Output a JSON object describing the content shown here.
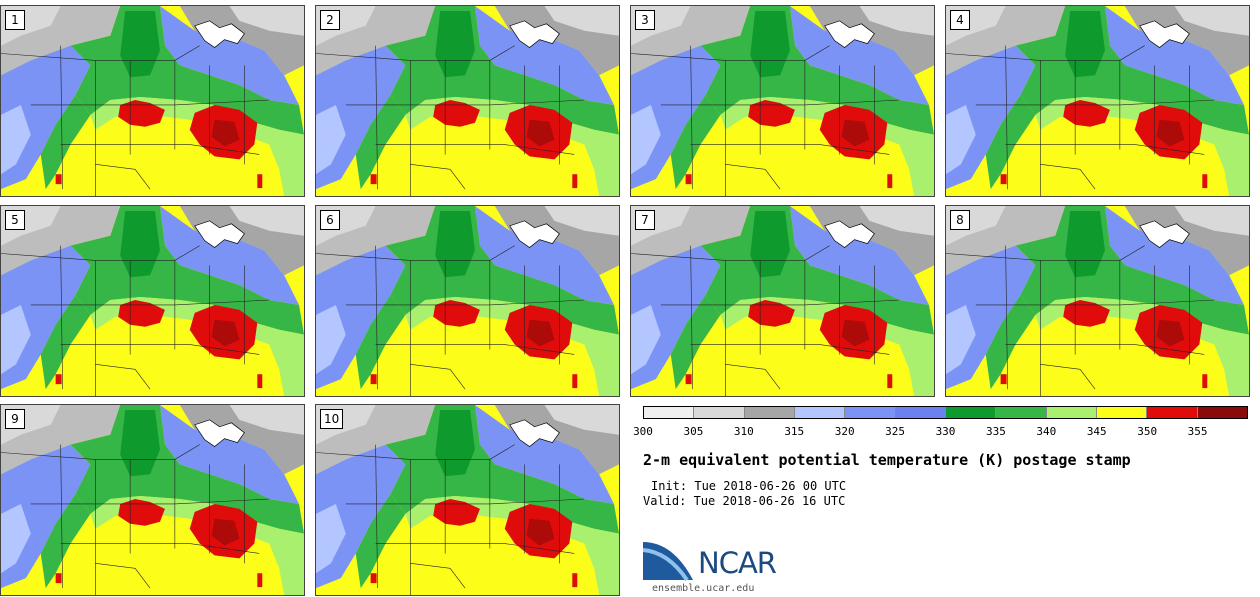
{
  "stamps": [
    {
      "label": "1",
      "variant": 0
    },
    {
      "label": "2",
      "variant": 1
    },
    {
      "label": "3",
      "variant": 2
    },
    {
      "label": "4",
      "variant": 3
    },
    {
      "label": "5",
      "variant": 4
    },
    {
      "label": "6",
      "variant": 5
    },
    {
      "label": "7",
      "variant": 6
    },
    {
      "label": "8",
      "variant": 7
    },
    {
      "label": "9",
      "variant": 8
    },
    {
      "label": "10",
      "variant": 9
    }
  ],
  "colorbar": {
    "colors": [
      "#efefef",
      "#d9d9d9",
      "#a6a6a6",
      "#b4c6ff",
      "#7b93f5",
      "#6a82f0",
      "#0f9a2e",
      "#36b646",
      "#a8f06e",
      "#fdfd1a",
      "#e00b0b",
      "#8b0a0a"
    ],
    "ticks": [
      "300",
      "305",
      "310",
      "315",
      "320",
      "325",
      "330",
      "335",
      "340",
      "345",
      "350",
      "355"
    ]
  },
  "header": {
    "title": "2-m equivalent potential temperature (K) postage stamp",
    "init": "Init: Tue 2018-06-26 00 UTC",
    "valid": "Valid: Tue 2018-06-26 16 UTC"
  },
  "logo": {
    "text": "NCAR"
  },
  "footer": {
    "site": "ensemble.ucar.edu"
  }
}
